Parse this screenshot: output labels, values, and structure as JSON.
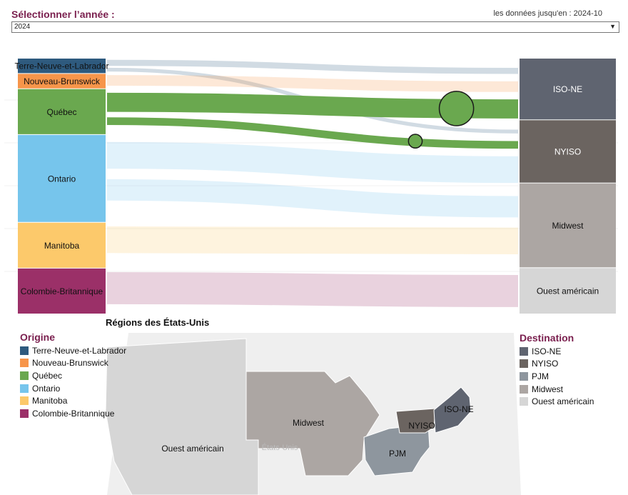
{
  "header": {
    "year_label": "Sélectionner l’année :",
    "data_note": "les données jusqu'en : 2024-10",
    "year_value": "2024"
  },
  "map": {
    "title": "Régions des États-Unis",
    "region_labels": [
      "Ouest américain",
      "Midwest",
      "NYISO",
      "ISO-NE",
      "PJM"
    ],
    "watermark": "États-Unis"
  },
  "legend_origin": {
    "title": "Origine",
    "items": [
      {
        "label": "Terre-Neuve-et-Labrador",
        "color": "#2e5a7e"
      },
      {
        "label": "Nouveau-Brunswick",
        "color": "#f7954a"
      },
      {
        "label": "Québec",
        "color": "#6aa84f"
      },
      {
        "label": "Ontario",
        "color": "#76c5ec"
      },
      {
        "label": "Manitoba",
        "color": "#fcc96b"
      },
      {
        "label": "Colombie-Britannique",
        "color": "#9b3068"
      }
    ]
  },
  "legend_dest": {
    "title": "Destination",
    "items": [
      {
        "label": "ISO-NE",
        "color": "#5f6470"
      },
      {
        "label": "NYISO",
        "color": "#6b6460"
      },
      {
        "label": "PJM",
        "color": "#8e969e"
      },
      {
        "label": "Midwest",
        "color": "#aca6a3"
      },
      {
        "label": "Ouest américain",
        "color": "#d6d6d6"
      }
    ]
  },
  "chart_data": {
    "type": "sankey",
    "origins": [
      {
        "name": "Terre-Neuve-et-Labrador",
        "color": "#2e5a7e",
        "value": 2.0
      },
      {
        "name": "Nouveau-Brunswick",
        "color": "#f7954a",
        "value": 2.0
      },
      {
        "name": "Québec",
        "color": "#6aa84f",
        "value": 6.0
      },
      {
        "name": "Ontario",
        "color": "#76c5ec",
        "value": 11.5
      },
      {
        "name": "Manitoba",
        "color": "#fcc96b",
        "value": 6.0
      },
      {
        "name": "Colombie-Britannique",
        "color": "#9b3068",
        "value": 6.0
      }
    ],
    "destinations": [
      {
        "name": "ISO-NE",
        "color": "#5f6470",
        "value": 8.0
      },
      {
        "name": "NYISO",
        "color": "#6b6460",
        "value": 8.2
      },
      {
        "name": "Midwest",
        "color": "#aca6a3",
        "value": 11.0
      },
      {
        "name": "Ouest américain",
        "color": "#d6d6d6",
        "value": 6.0
      }
    ],
    "flows": [
      {
        "from": "Terre-Neuve-et-Labrador",
        "to": "ISO-NE",
        "value": 0.8,
        "highlight": false
      },
      {
        "from": "Terre-Neuve-et-Labrador",
        "to": "NYISO",
        "value": 0.5,
        "highlight": false
      },
      {
        "from": "Nouveau-Brunswick",
        "to": "ISO-NE",
        "value": 1.4,
        "highlight": false
      },
      {
        "from": "Québec",
        "to": "ISO-NE",
        "value": 2.5,
        "highlight": true
      },
      {
        "from": "Québec",
        "to": "NYISO",
        "value": 1.0,
        "highlight": true
      },
      {
        "from": "Ontario",
        "to": "NYISO",
        "value": 3.5,
        "highlight": false
      },
      {
        "from": "Ontario",
        "to": "Midwest",
        "value": 2.8,
        "highlight": false
      },
      {
        "from": "Manitoba",
        "to": "Midwest",
        "value": 3.5,
        "highlight": false
      },
      {
        "from": "Colombie-Britannique",
        "to": "Ouest américain",
        "value": 4.2,
        "highlight": false
      }
    ]
  }
}
